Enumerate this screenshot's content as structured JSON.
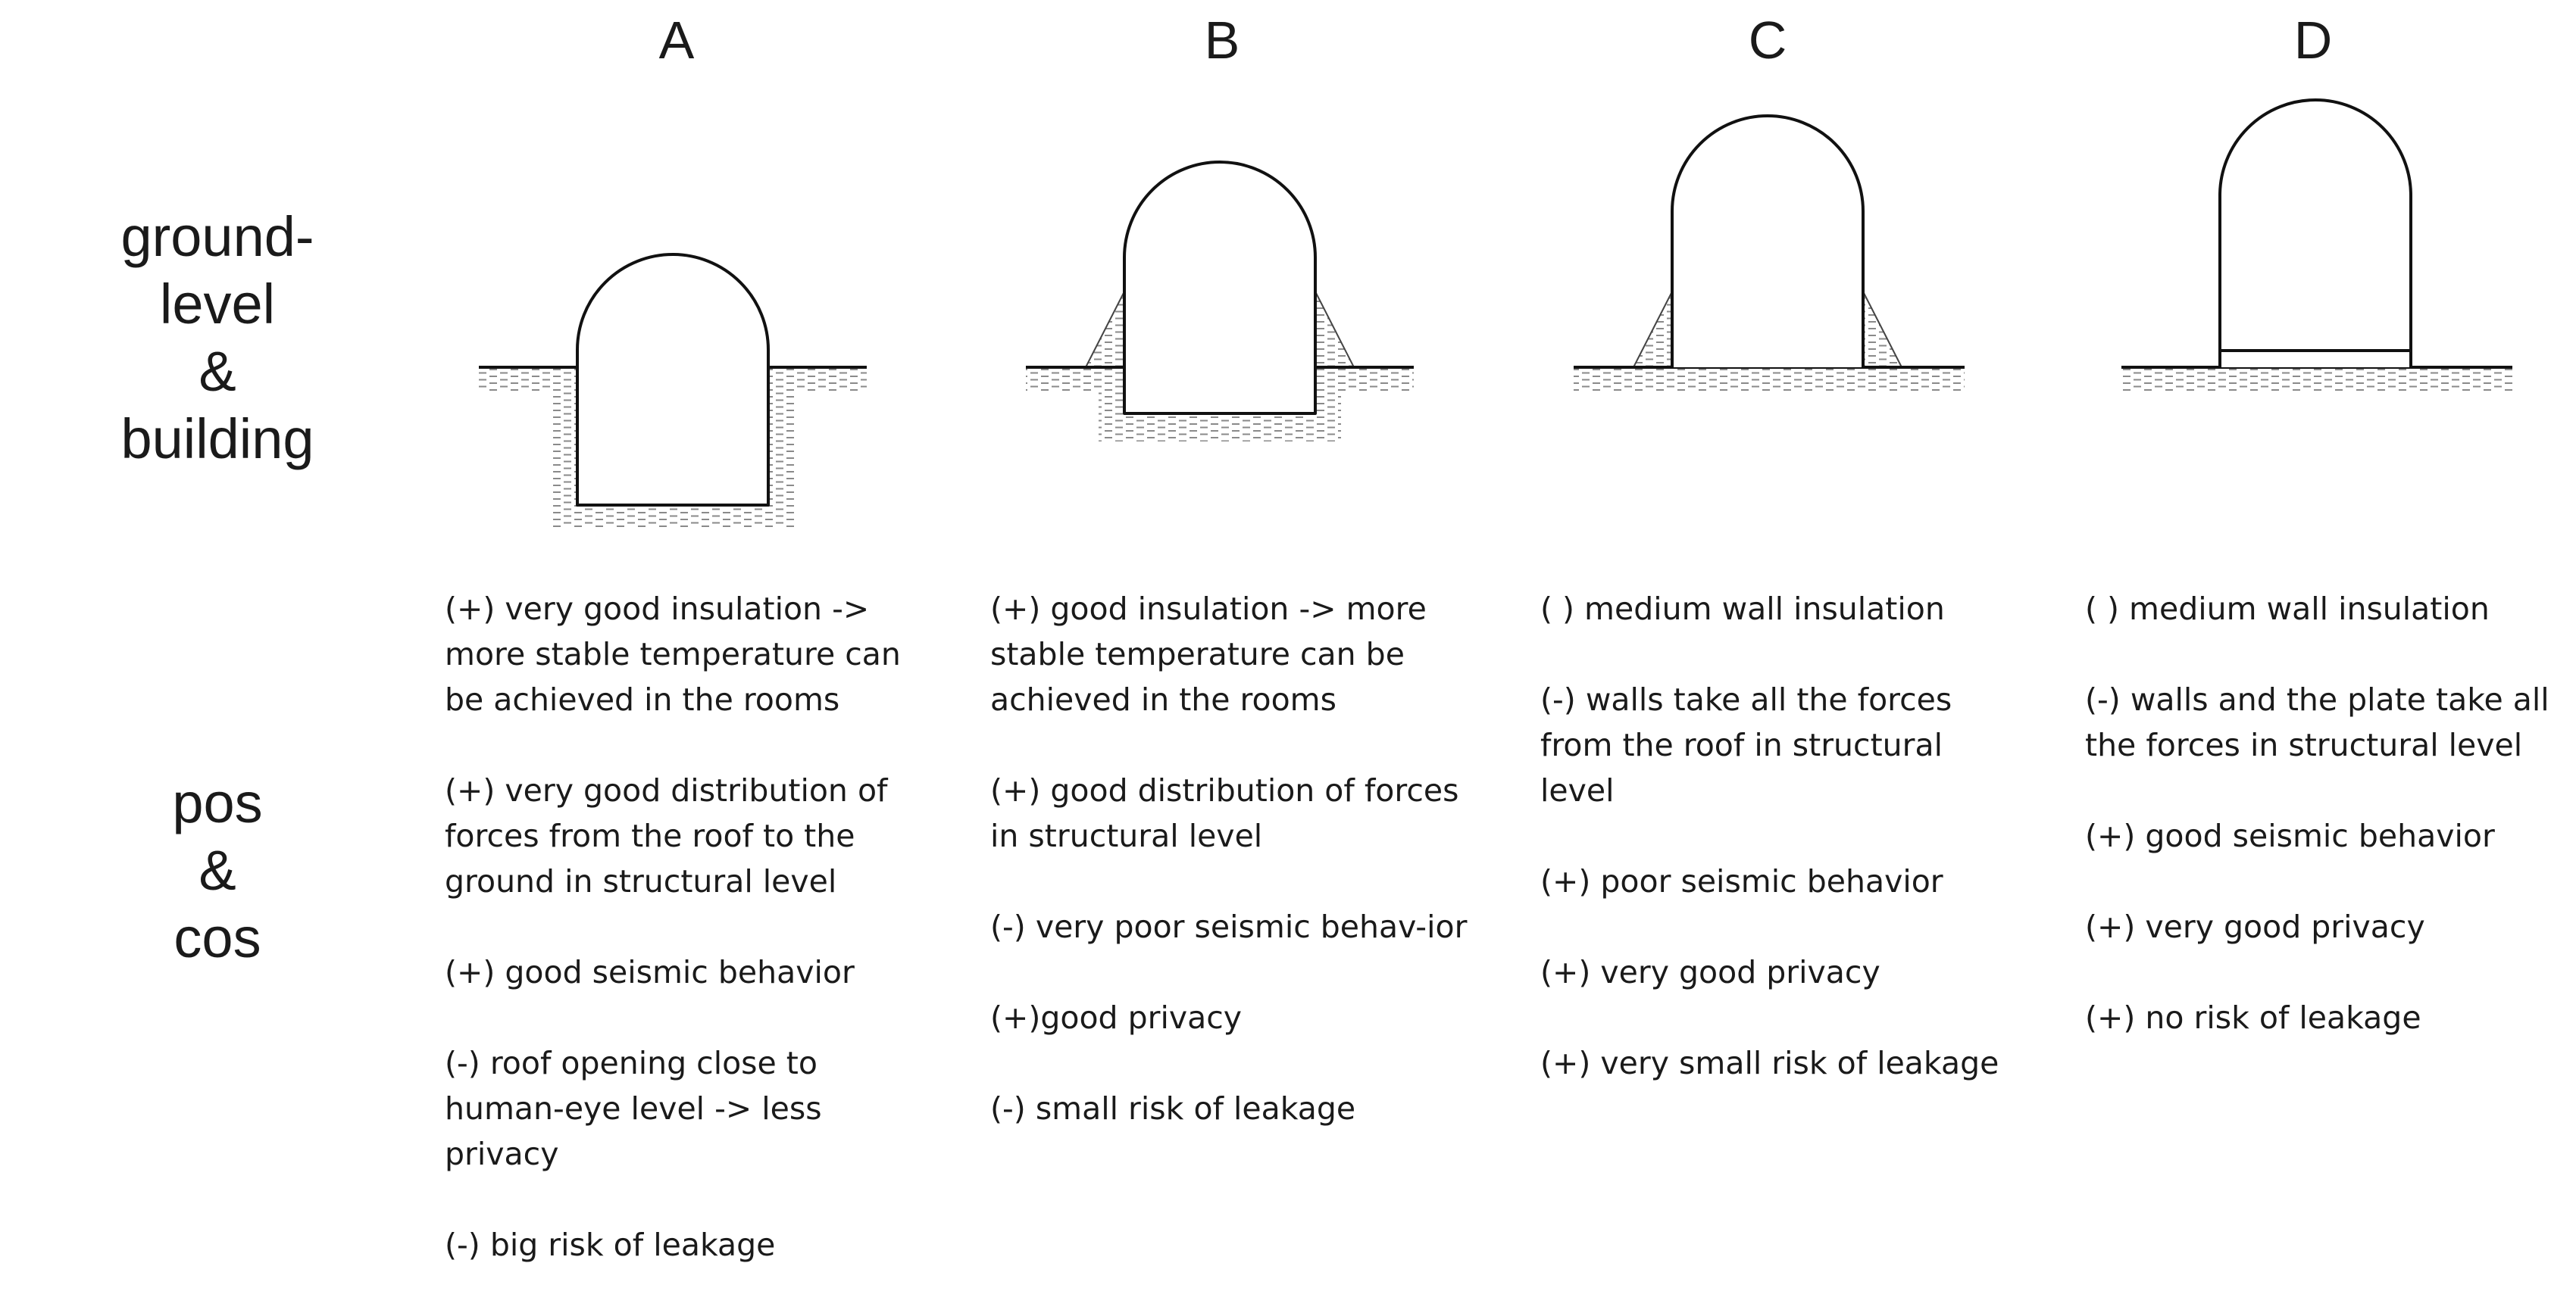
{
  "columns": [
    {
      "letter": "A",
      "points": [
        "(+) very good insulation -> more stable temperature can be achieved in the rooms",
        "(+) very good distribution of forces from the roof to the ground in structural level",
        "(+) good seismic behavior",
        "(-) roof opening close to human-eye level -> less privacy",
        "(-) big risk of leakage"
      ]
    },
    {
      "letter": "B",
      "points": [
        "(+) good insulation -> more stable temperature can be achieved in the rooms",
        "(+) good distribution of forces in structural level",
        "(-) very poor seismic behav-ior",
        "(+)good privacy",
        "(-) small risk of leakage"
      ]
    },
    {
      "letter": "C",
      "points": [
        "( ) medium wall insulation",
        "(-) walls take all the forces from the roof in structural level",
        "(+) poor seismic behavior",
        "(+) very good privacy",
        "(+) very small risk of leakage"
      ]
    },
    {
      "letter": "D",
      "points": [
        "( ) medium wall insulation",
        "(-) walls and the plate take all the forces in structural level",
        "(+) good seismic behavior",
        "(+) very good privacy",
        "(+) no risk of leakage"
      ]
    }
  ],
  "row_labels": {
    "building": [
      "ground-level",
      "&",
      "building"
    ],
    "pros_cons": [
      "pos",
      "&",
      "cos"
    ]
  }
}
